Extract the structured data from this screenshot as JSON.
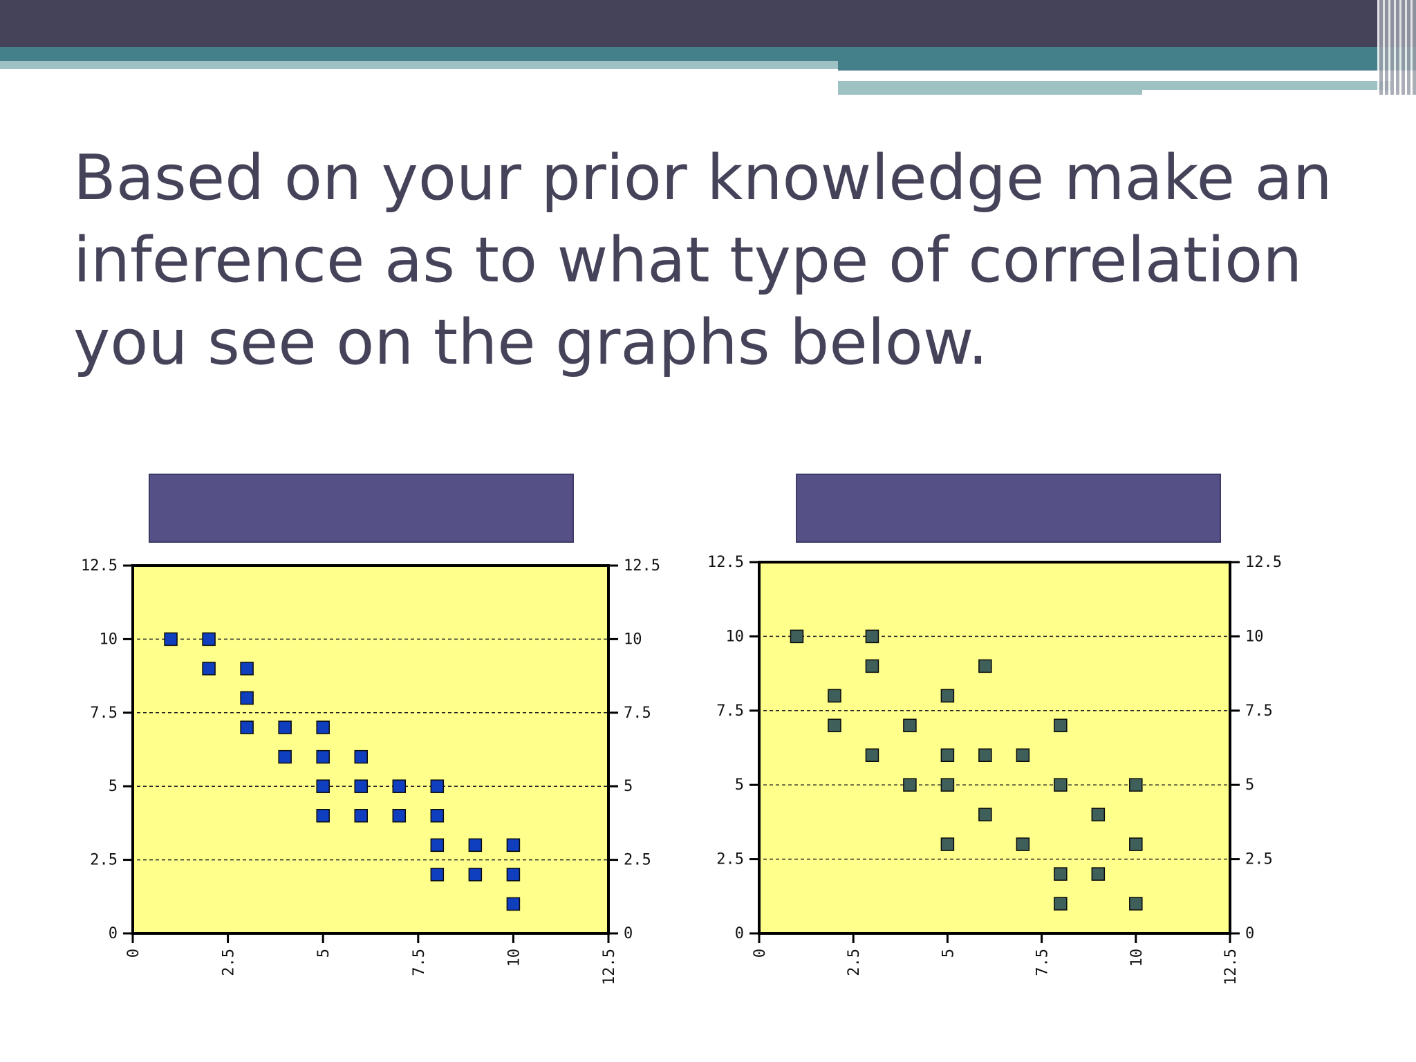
{
  "slide": {
    "title": "Based on your prior knowledge make an inference as to what type of correlation you see on the graphs below."
  },
  "colors": {
    "header": "#45435a",
    "accent": "#43808a",
    "accent_light": "#9ec1c4",
    "plot_bg": "#ffff8c",
    "label_box": "#555086"
  },
  "chart_data": [
    {
      "type": "scatter",
      "marker_color": "#0f3fbf",
      "xlim": [
        0,
        12.5
      ],
      "ylim": [
        0,
        12.5
      ],
      "x_ticks": [
        "0",
        "2.5",
        "5",
        "7.5",
        "10",
        "12.5"
      ],
      "y_ticks": [
        "0",
        "2.5",
        "5",
        "7.5",
        "10",
        "12.5"
      ],
      "grid": "horizontal dashed at 2.5, 5, 7.5, 10",
      "points": [
        [
          1,
          10
        ],
        [
          2,
          10
        ],
        [
          2,
          9
        ],
        [
          3,
          9
        ],
        [
          3,
          8
        ],
        [
          3,
          7
        ],
        [
          4,
          7
        ],
        [
          5,
          7
        ],
        [
          4,
          6
        ],
        [
          5,
          6
        ],
        [
          6,
          6
        ],
        [
          5,
          5
        ],
        [
          6,
          5
        ],
        [
          7,
          5
        ],
        [
          8,
          5
        ],
        [
          5,
          4
        ],
        [
          6,
          4
        ],
        [
          7,
          4
        ],
        [
          8,
          4
        ],
        [
          8,
          3
        ],
        [
          9,
          3
        ],
        [
          10,
          3
        ],
        [
          8,
          2
        ],
        [
          9,
          2
        ],
        [
          10,
          2
        ],
        [
          10,
          1
        ]
      ]
    },
    {
      "type": "scatter",
      "marker_color": "#3f5f5a",
      "xlim": [
        0,
        12.5
      ],
      "ylim": [
        0,
        12.5
      ],
      "x_ticks": [
        "0",
        "2.5",
        "5",
        "7.5",
        "10",
        "12.5"
      ],
      "y_ticks": [
        "0",
        "2.5",
        "5",
        "7.5",
        "10",
        "12.5"
      ],
      "grid": "horizontal dashed at 2.5, 5, 7.5, 10",
      "points": [
        [
          1,
          10
        ],
        [
          3,
          10
        ],
        [
          3,
          9
        ],
        [
          6,
          9
        ],
        [
          2,
          8
        ],
        [
          5,
          8
        ],
        [
          2,
          7
        ],
        [
          4,
          7
        ],
        [
          8,
          7
        ],
        [
          3,
          6
        ],
        [
          5,
          6
        ],
        [
          6,
          6
        ],
        [
          7,
          6
        ],
        [
          4,
          5
        ],
        [
          5,
          5
        ],
        [
          8,
          5
        ],
        [
          10,
          5
        ],
        [
          6,
          4
        ],
        [
          9,
          4
        ],
        [
          5,
          3
        ],
        [
          7,
          3
        ],
        [
          10,
          3
        ],
        [
          8,
          2
        ],
        [
          9,
          2
        ],
        [
          8,
          1
        ],
        [
          10,
          1
        ]
      ]
    }
  ]
}
